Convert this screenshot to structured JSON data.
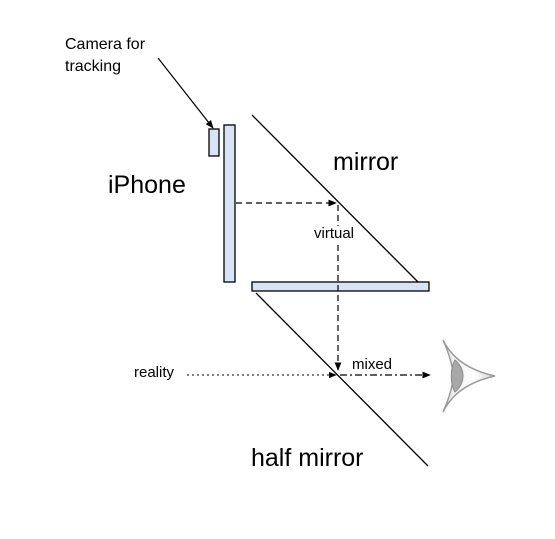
{
  "labels": {
    "camera_line1": "Camera for",
    "camera_line2": "tracking",
    "iphone": "iPhone",
    "mirror": "mirror",
    "virtual": "virtual",
    "reality": "reality",
    "mixed": "mixed",
    "half_mirror": "half mirror"
  },
  "colors": {
    "device_fill": "#d6e4f5",
    "outline": "#000000",
    "eye_shadow": "#9a9a9a"
  },
  "icons": {
    "eye": "eye-icon"
  }
}
